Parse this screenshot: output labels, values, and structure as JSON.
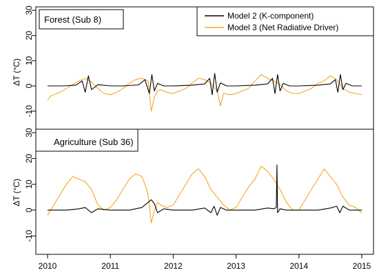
{
  "chart_data": [
    {
      "type": "line",
      "panel_label": "Forest (Sub 8)",
      "xlabel": "",
      "ylabel": "ΔT (°C)",
      "xlim": [
        2010,
        2015
      ],
      "ylim": [
        -15,
        30
      ],
      "yticks": [
        -10,
        0,
        10,
        20,
        30
      ],
      "xticks": [
        2010,
        2011,
        2012,
        2013,
        2014,
        2015
      ],
      "legend": {
        "placement": "top-right",
        "entries": [
          {
            "label": "Model 2 (K-component)",
            "color": "#000000"
          },
          {
            "label": "Model 3 (Net Radiative Driver)",
            "color": "#f5a623"
          }
        ]
      },
      "series": [
        {
          "name": "Model 2 (K-component)",
          "color": "#000000",
          "x": [
            2010.0,
            2010.25,
            2010.45,
            2010.55,
            2010.6,
            2010.65,
            2010.7,
            2010.8,
            2011.0,
            2011.2,
            2011.45,
            2011.55,
            2011.62,
            2011.66,
            2011.7,
            2011.75,
            2011.85,
            2012.0,
            2012.3,
            2012.5,
            2012.58,
            2012.62,
            2012.66,
            2012.7,
            2012.75,
            2012.85,
            2013.0,
            2013.3,
            2013.5,
            2013.58,
            2013.62,
            2013.66,
            2013.7,
            2013.75,
            2013.85,
            2014.0,
            2014.3,
            2014.5,
            2014.58,
            2014.62,
            2014.66,
            2014.7,
            2014.75,
            2014.85,
            2015.0
          ],
          "y": [
            0,
            0,
            0.3,
            2.0,
            -2.5,
            4.0,
            -1.5,
            0.5,
            0,
            0,
            0.4,
            2.5,
            -3.0,
            4.5,
            -2.0,
            1.0,
            0,
            0,
            0.3,
            0.8,
            3.0,
            -3.5,
            5.0,
            -2.5,
            1.2,
            0,
            0,
            0.3,
            0.8,
            3.0,
            -3.0,
            4.5,
            -2.0,
            1.0,
            0,
            0,
            0.3,
            0.8,
            2.5,
            -2.5,
            4.5,
            -1.5,
            1.0,
            0,
            0
          ]
        },
        {
          "name": "Model 3 (Net Radiative Driver)",
          "color": "#f5a623",
          "x": [
            2010.0,
            2010.05,
            2010.1,
            2010.2,
            2010.3,
            2010.4,
            2010.5,
            2010.6,
            2010.7,
            2010.8,
            2010.9,
            2011.0,
            2011.1,
            2011.2,
            2011.3,
            2011.4,
            2011.5,
            2011.6,
            2011.65,
            2011.7,
            2011.75,
            2011.8,
            2011.9,
            2012.0,
            2012.1,
            2012.2,
            2012.3,
            2012.4,
            2012.5,
            2012.6,
            2012.7,
            2012.75,
            2012.8,
            2012.9,
            2013.0,
            2013.1,
            2013.2,
            2013.3,
            2013.4,
            2013.5,
            2013.6,
            2013.7,
            2013.8,
            2013.9,
            2014.0,
            2014.1,
            2014.2,
            2014.3,
            2014.4,
            2014.5,
            2014.6,
            2014.7,
            2014.8,
            2014.9,
            2015.0
          ],
          "y": [
            -5.5,
            -4.0,
            -3.5,
            -2.5,
            -1.0,
            0.5,
            2.0,
            3.0,
            1.5,
            -1.0,
            -3.0,
            -3.5,
            -2.5,
            -1.0,
            1.0,
            2.5,
            3.0,
            2.0,
            -10.0,
            -4.5,
            -2.0,
            -1.5,
            -2.5,
            -3.0,
            -2.0,
            -1.0,
            1.0,
            3.0,
            2.5,
            1.0,
            -2.0,
            -8.0,
            -3.0,
            -3.5,
            -3.0,
            -2.0,
            -1.0,
            2.0,
            4.5,
            3.0,
            2.0,
            0.5,
            -2.0,
            -3.0,
            -3.0,
            -2.0,
            -1.0,
            1.0,
            2.0,
            4.0,
            2.5,
            -1.0,
            -2.5,
            -3.0,
            -3.5
          ]
        }
      ]
    },
    {
      "type": "line",
      "panel_label": "Agriculture (Sub 36)",
      "xlabel": "",
      "ylabel": "ΔT (°C)",
      "xlim": [
        2010,
        2015
      ],
      "ylim": [
        -15,
        30
      ],
      "yticks": [
        -10,
        0,
        10,
        20,
        30
      ],
      "xticks": [
        2010,
        2011,
        2012,
        2013,
        2014,
        2015
      ],
      "series": [
        {
          "name": "Model 2 (K-component)",
          "color": "#000000",
          "x": [
            2010.0,
            2010.3,
            2010.5,
            2010.6,
            2010.7,
            2010.8,
            2011.0,
            2011.3,
            2011.5,
            2011.6,
            2011.65,
            2011.7,
            2011.75,
            2011.85,
            2012.0,
            2012.3,
            2012.5,
            2012.6,
            2012.65,
            2012.7,
            2012.75,
            2012.85,
            2013.0,
            2013.3,
            2013.5,
            2013.6,
            2013.64,
            2013.65,
            2013.66,
            2013.7,
            2013.8,
            2014.0,
            2014.3,
            2014.5,
            2014.6,
            2014.65,
            2014.7,
            2014.8,
            2015.0
          ],
          "y": [
            0,
            0,
            0.5,
            1.0,
            -1.0,
            0.5,
            0,
            0,
            1.0,
            3.0,
            4.0,
            2.5,
            -1.0,
            0.5,
            0,
            0,
            0.8,
            -1.0,
            1.5,
            -2.0,
            1.0,
            0,
            0,
            0,
            0.8,
            0.5,
            1.0,
            17.5,
            -1.0,
            0.5,
            0,
            0,
            0,
            0.8,
            1.5,
            -1.0,
            1.5,
            0,
            0
          ]
        },
        {
          "name": "Model 3 (Net Radiative Driver)",
          "color": "#f5a623",
          "x": [
            2010.0,
            2010.05,
            2010.1,
            2010.2,
            2010.3,
            2010.4,
            2010.5,
            2010.6,
            2010.7,
            2010.8,
            2010.9,
            2011.0,
            2011.1,
            2011.2,
            2011.3,
            2011.4,
            2011.5,
            2011.55,
            2011.6,
            2011.65,
            2011.7,
            2011.75,
            2011.8,
            2011.9,
            2012.0,
            2012.1,
            2012.2,
            2012.3,
            2012.4,
            2012.5,
            2012.6,
            2012.7,
            2012.8,
            2012.9,
            2013.0,
            2013.1,
            2013.2,
            2013.3,
            2013.4,
            2013.5,
            2013.6,
            2013.7,
            2013.8,
            2013.9,
            2014.0,
            2014.1,
            2014.2,
            2014.3,
            2014.4,
            2014.5,
            2014.6,
            2014.7,
            2014.8,
            2014.9,
            2015.0
          ],
          "y": [
            -2.0,
            0.0,
            2.0,
            6.0,
            10.0,
            13.0,
            12.0,
            11.0,
            8.0,
            2.0,
            0.0,
            1.0,
            4.0,
            8.0,
            12.0,
            14.0,
            13.0,
            10.0,
            6.0,
            -5.0,
            0.0,
            3.0,
            2.0,
            1.0,
            2.0,
            6.0,
            10.0,
            14.0,
            16.0,
            13.0,
            8.0,
            5.0,
            2.0,
            0.0,
            1.0,
            5.0,
            9.0,
            12.0,
            17.0,
            15.0,
            12.0,
            8.0,
            3.0,
            0.0,
            0.0,
            4.0,
            8.0,
            12.0,
            16.0,
            13.0,
            10.0,
            5.0,
            2.0,
            1.0,
            -1.0
          ]
        }
      ]
    }
  ]
}
